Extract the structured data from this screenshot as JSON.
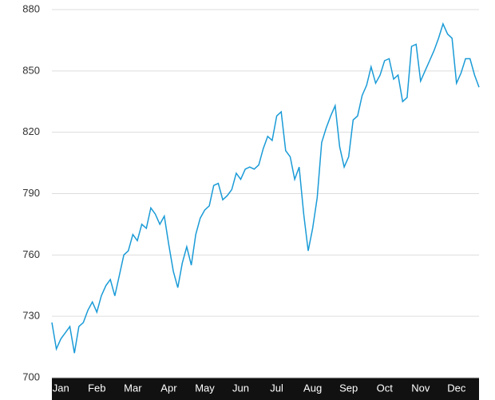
{
  "chart_data": {
    "type": "line",
    "categories": [
      null,
      null,
      "Jan",
      null,
      null,
      null,
      null,
      null,
      null,
      null,
      "Feb",
      null,
      null,
      null,
      null,
      null,
      null,
      null,
      "Mar",
      null,
      null,
      null,
      null,
      null,
      null,
      null,
      "Apr",
      null,
      null,
      null,
      null,
      null,
      null,
      null,
      "May",
      null,
      null,
      null,
      null,
      null,
      null,
      null,
      "Jun",
      null,
      null,
      null,
      null,
      null,
      null,
      null,
      "Jul",
      null,
      null,
      null,
      null,
      null,
      null,
      null,
      "Aug",
      null,
      null,
      null,
      null,
      null,
      null,
      null,
      "Sep",
      null,
      null,
      null,
      null,
      null,
      null,
      null,
      "Oct",
      null,
      null,
      null,
      null,
      null,
      null,
      null,
      "Nov",
      null,
      null,
      null,
      null,
      null,
      null,
      null,
      "Dec",
      null,
      null,
      null,
      null,
      null
    ],
    "series": [
      {
        "color": "#1a9bd7",
        "values": [
          727,
          714,
          719,
          722,
          725,
          712,
          725,
          727,
          733,
          737,
          732,
          740,
          745,
          748,
          740,
          750,
          760,
          762,
          770,
          767,
          775,
          773,
          783,
          780,
          775,
          779,
          765,
          752,
          744,
          756,
          764,
          755,
          770,
          778,
          782,
          784,
          794,
          795,
          787,
          789,
          792,
          800,
          797,
          802,
          803,
          802,
          804,
          812,
          818,
          816,
          828,
          830,
          811,
          808,
          797,
          803,
          780,
          762,
          773,
          788,
          815,
          822,
          828,
          833,
          813,
          803,
          808,
          826,
          828,
          838,
          843,
          852,
          844,
          848,
          855,
          856,
          846,
          848,
          835,
          837,
          862,
          863,
          845,
          850,
          855,
          860,
          866,
          873,
          868,
          866,
          844,
          849,
          856,
          856,
          848,
          842
        ]
      }
    ],
    "ylim": [
      700,
      880
    ],
    "yticks": [
      700,
      730,
      760,
      790,
      820,
      850,
      880
    ],
    "grid": true
  }
}
